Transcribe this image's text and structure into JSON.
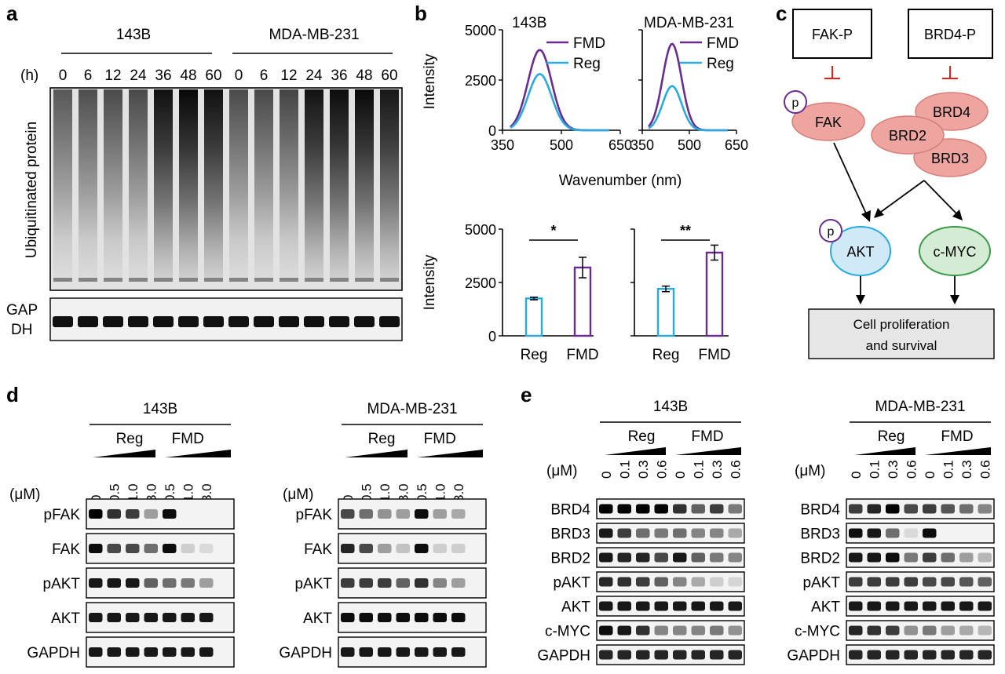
{
  "panel_labels": {
    "a": "a",
    "b": "b",
    "c": "c",
    "d": "d",
    "e": "e"
  },
  "panel_a": {
    "groups": [
      "143B",
      "MDA-MB-231"
    ],
    "unit": "(h)",
    "timepoints": [
      "0",
      "6",
      "12",
      "24",
      "36",
      "48",
      "60"
    ],
    "blot_label": "Ubiquitinated protein",
    "loading_label_1": "GAP",
    "loading_label_2": "DH"
  },
  "panel_b": {
    "spectra": [
      {
        "cell": "143B",
        "fmd_peak": 4000,
        "reg_peak": 2800
      },
      {
        "cell": "MDA-MB-231",
        "fmd_peak": 4300,
        "reg_peak": 2200
      }
    ],
    "legend": [
      "FMD",
      "Reg"
    ],
    "series_colors": {
      "FMD": "#6b2c91",
      "Reg": "#29abe2"
    },
    "spectrum_ylabel": "Intensity",
    "spectrum_xlabel": "Wavenumber (nm)",
    "spectrum_yticks": [
      "0",
      "2500",
      "5000"
    ],
    "spectrum_xticks": [
      "350",
      "500",
      "650"
    ],
    "spectrum_xrange": [
      350,
      650
    ],
    "spectrum_yrange": [
      0,
      5000
    ],
    "peak_wavelength": 445,
    "bars_ylabel": "Intensity",
    "bars_yticks": [
      "0",
      "2500",
      "5000"
    ],
    "bars_yrange": [
      0,
      5000
    ],
    "bar_categories": [
      "Reg",
      "FMD"
    ],
    "bar_sets": [
      {
        "cell": "143B",
        "values": [
          1750,
          3200
        ],
        "errors": [
          60,
          480
        ],
        "sig": "*"
      },
      {
        "cell": "MDA-MB-231",
        "values": [
          2200,
          3900
        ],
        "errors": [
          130,
          350
        ],
        "sig": "**"
      }
    ]
  },
  "panel_c": {
    "inhibitors": [
      "FAK-P",
      "BRD4-P"
    ],
    "phospho": "p",
    "fak": "FAK",
    "brd": [
      "BRD4",
      "BRD2",
      "BRD3"
    ],
    "akt": "AKT",
    "myc": "c-MYC",
    "outcome_1": "Cell proliferation",
    "outcome_2": "and survival"
  },
  "panel_d": {
    "cells": [
      "143B",
      "MDA-MB-231"
    ],
    "conditions": [
      "Reg",
      "FMD"
    ],
    "unit": "(μM)",
    "doses": [
      "0",
      "0.5",
      "1.0",
      "3.0",
      "0.5",
      "1.0",
      "3.0"
    ],
    "rows": [
      "pFAK",
      "FAK",
      "pAKT",
      "AKT",
      "GAPDH"
    ]
  },
  "panel_e": {
    "cells": [
      "143B",
      "MDA-MB-231"
    ],
    "conditions": [
      "Reg",
      "FMD"
    ],
    "unit": "(μM)",
    "doses": [
      "0",
      "0.1",
      "0.3",
      "0.6",
      "0",
      "0.1",
      "0.3",
      "0.6"
    ],
    "rows": [
      "BRD4",
      "BRD3",
      "BRD2",
      "pAKT",
      "AKT",
      "c-MYC",
      "GAPDH"
    ]
  },
  "chart_data": [
    {
      "type": "line",
      "title": "143B",
      "xlabel": "Wavenumber (nm)",
      "ylabel": "Intensity",
      "xlim": [
        350,
        650
      ],
      "ylim": [
        0,
        5000
      ],
      "series": [
        {
          "name": "FMD",
          "peak_x": 445,
          "peak_y": 4000
        },
        {
          "name": "Reg",
          "peak_x": 445,
          "peak_y": 2800
        }
      ]
    },
    {
      "type": "line",
      "title": "MDA-MB-231",
      "xlabel": "Wavenumber (nm)",
      "ylabel": "Intensity",
      "xlim": [
        350,
        650
      ],
      "ylim": [
        0,
        5000
      ],
      "series": [
        {
          "name": "FMD",
          "peak_x": 445,
          "peak_y": 4300
        },
        {
          "name": "Reg",
          "peak_x": 445,
          "peak_y": 2200
        }
      ]
    },
    {
      "type": "bar",
      "title": "143B",
      "categories": [
        "Reg",
        "FMD"
      ],
      "values": [
        1750,
        3200
      ],
      "ylabel": "Intensity",
      "ylim": [
        0,
        5000
      ],
      "annotation": "*"
    },
    {
      "type": "bar",
      "title": "MDA-MB-231",
      "categories": [
        "Reg",
        "FMD"
      ],
      "values": [
        2200,
        3900
      ],
      "ylabel": "Intensity",
      "ylim": [
        0,
        5000
      ],
      "annotation": "**"
    }
  ]
}
